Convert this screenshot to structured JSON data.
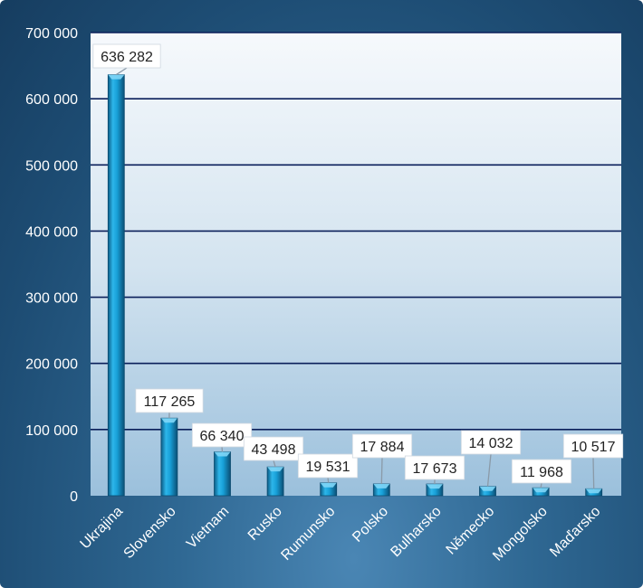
{
  "chart_data": {
    "type": "bar",
    "categories": [
      "Ukrajina",
      "Slovensko",
      "Vietnam",
      "Rusko",
      "Rumunsko",
      "Polsko",
      "Bulharsko",
      "Německo",
      "Mongolsko",
      "Maďarsko"
    ],
    "values": [
      636282,
      117265,
      66340,
      43498,
      19531,
      17884,
      17673,
      14032,
      11968,
      10517
    ],
    "value_labels": [
      "636 282",
      "117 265",
      "66 340",
      "43 498",
      "19 531",
      "17 884",
      "17 673",
      "14 032",
      "11 968",
      "10 517"
    ],
    "ylim": [
      0,
      700000
    ],
    "yticks": [
      0,
      100000,
      200000,
      300000,
      400000,
      500000,
      600000,
      700000
    ],
    "ytick_labels": [
      "0",
      "100 000",
      "200 000",
      "300 000",
      "400 000",
      "500 000",
      "600 000",
      "700 000"
    ],
    "grid": true,
    "colors": {
      "bar": "#1aa3dc",
      "bar_dark": "#0b5f8a",
      "frame": "#1d4c73",
      "plot_top": "#f4f8fc",
      "plot_bottom": "#9ec2dd",
      "gridline": "#0a1f5a"
    }
  }
}
